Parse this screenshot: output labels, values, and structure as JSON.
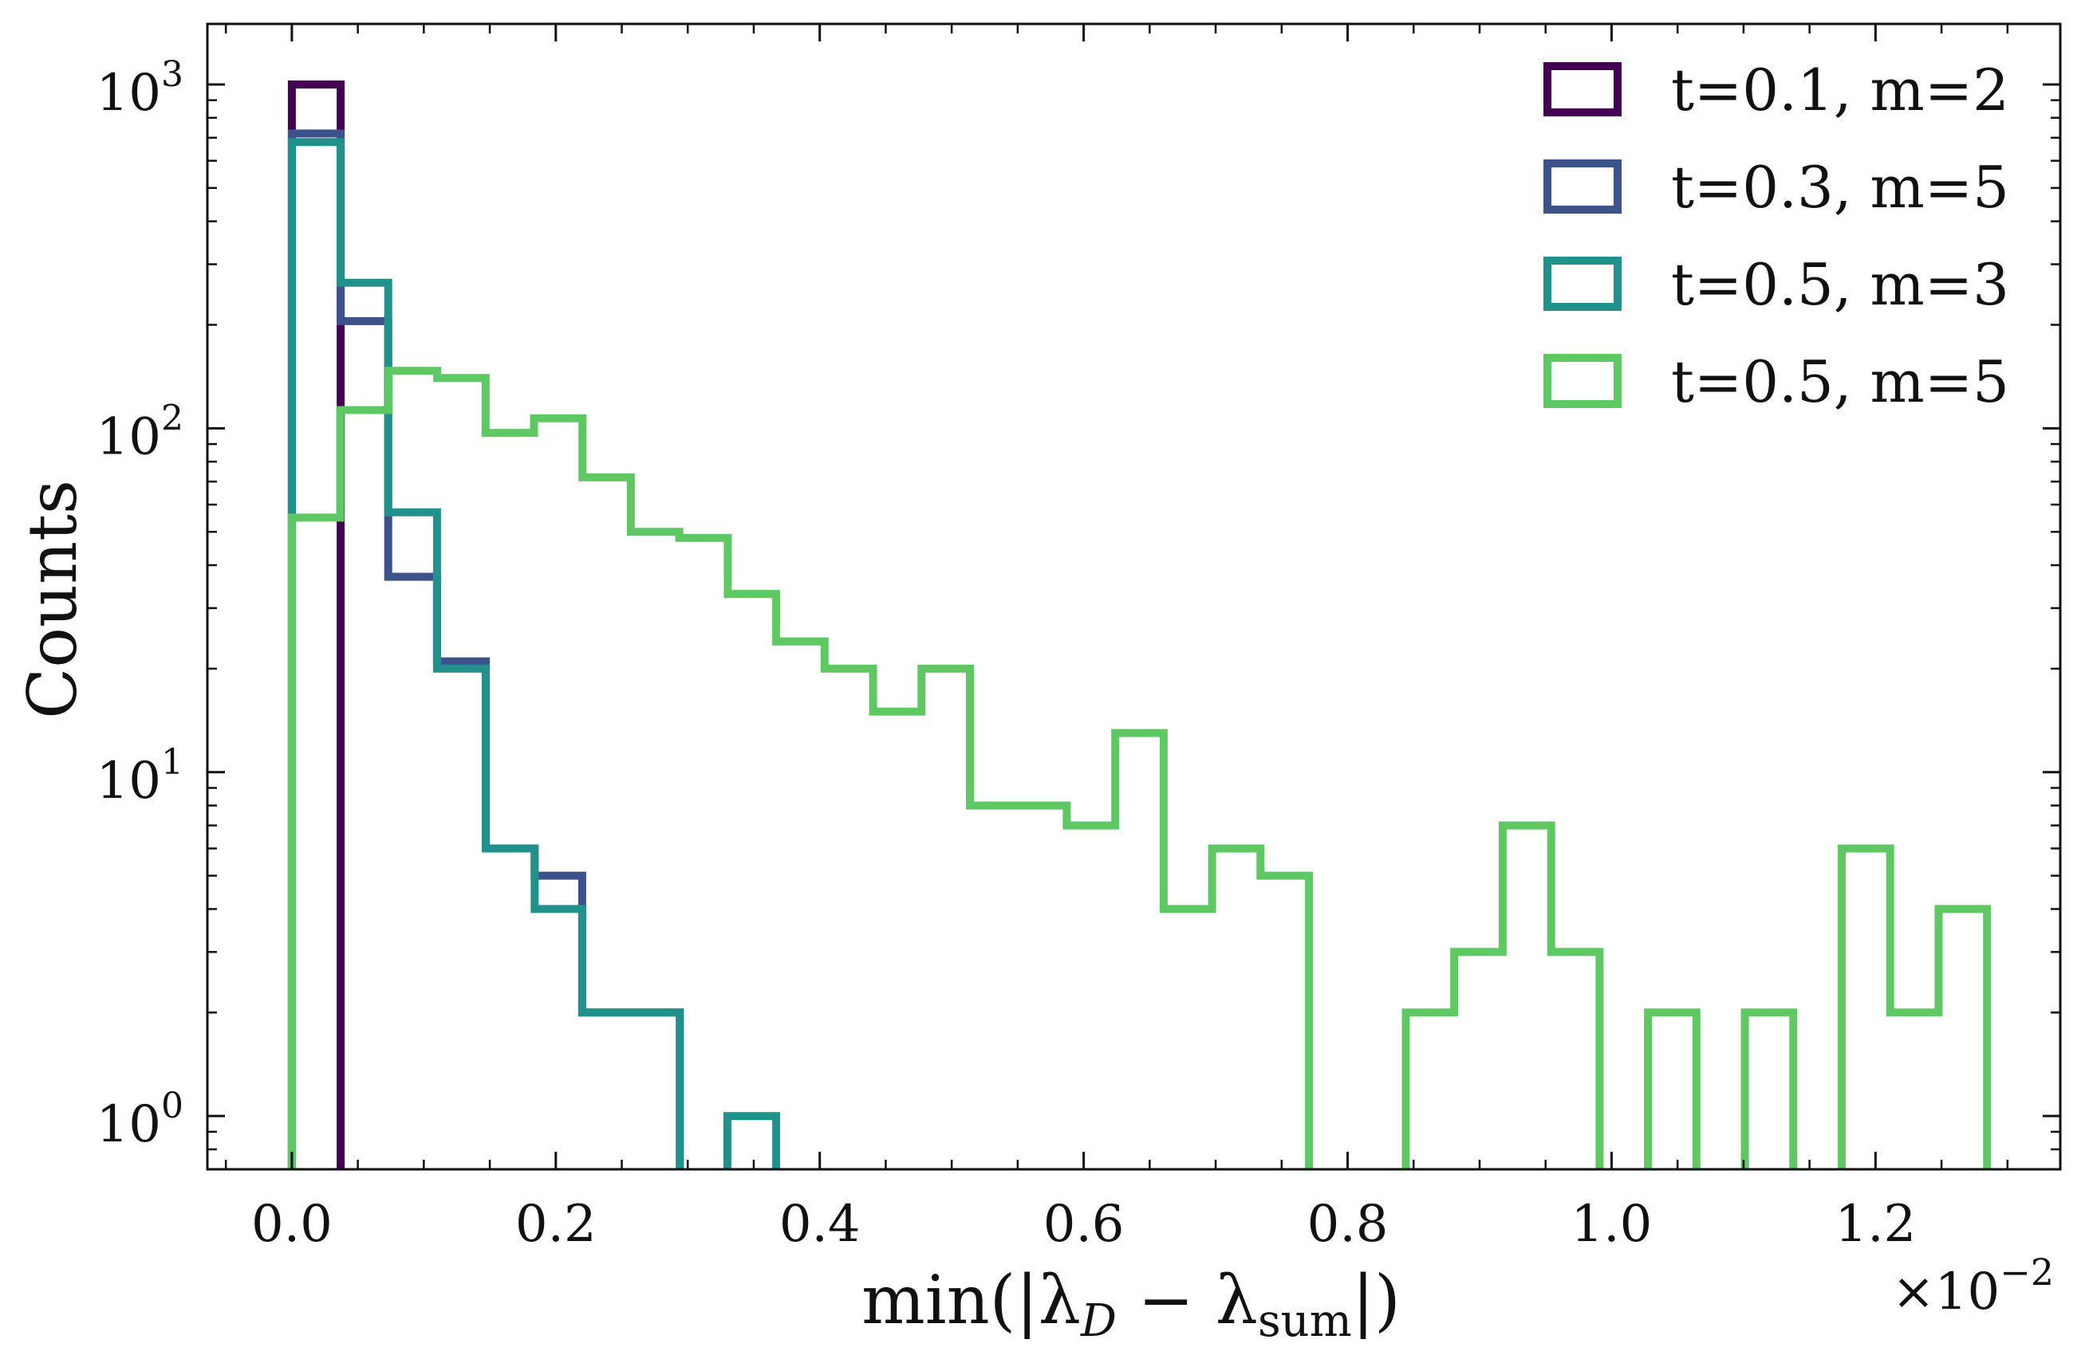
{
  "chart_data": {
    "type": "histogram-step",
    "xlabel": "min(|λ_D − λ_sum|)",
    "xlabel_parts": {
      "prefix": "min(|λ",
      "sub1": "D",
      "mid": " − λ",
      "sub2": "sum",
      "suffix": "|)"
    },
    "ylabel": "Counts",
    "x_multiplier": {
      "base": "×10",
      "exponent": "−2"
    },
    "yscale": "log",
    "xlim": [
      -0.064,
      1.34
    ],
    "ylim": [
      0.7,
      1500
    ],
    "xticks": [
      0.0,
      0.2,
      0.4,
      0.6,
      0.8,
      1.0,
      1.2
    ],
    "xtick_labels": [
      "0.0",
      "0.2",
      "0.4",
      "0.6",
      "0.8",
      "1.0",
      "1.2"
    ],
    "yticks": [
      {
        "value": 1,
        "base": "10",
        "exp": "0"
      },
      {
        "value": 10,
        "base": "10",
        "exp": "1"
      },
      {
        "value": 100,
        "base": "10",
        "exp": "2"
      },
      {
        "value": 1000,
        "base": "10",
        "exp": "3"
      }
    ],
    "legend_position": "top-right",
    "series": [
      {
        "name": "t=0.1, m=2",
        "color": "#440154",
        "edges": [
          0.0,
          0.037
        ],
        "counts": [
          1000
        ]
      },
      {
        "name": "t=0.3, m=5",
        "color": "#3b528b",
        "edges": [
          0.0,
          0.037,
          0.073,
          0.11,
          0.147,
          0.184,
          0.22,
          0.257,
          0.294
        ],
        "counts": [
          720,
          205,
          37,
          21,
          6,
          5,
          2,
          2
        ]
      },
      {
        "name": "t=0.5, m=3",
        "color": "#21918c",
        "edges": [
          0.0,
          0.037,
          0.073,
          0.11,
          0.147,
          0.184,
          0.22,
          0.257,
          0.294,
          0.33,
          0.367
        ],
        "counts": [
          680,
          265,
          57,
          20,
          6,
          4,
          2,
          2,
          0,
          1
        ]
      },
      {
        "name": "t=0.5, m=5",
        "color": "#5ec962",
        "edges": [
          0.0,
          0.0367,
          0.0734,
          0.1101,
          0.1468,
          0.1835,
          0.2202,
          0.2569,
          0.2936,
          0.3303,
          0.367,
          0.4037,
          0.4404,
          0.4771,
          0.5138,
          0.5505,
          0.5872,
          0.6239,
          0.6606,
          0.6973,
          0.734,
          0.7707,
          0.8074,
          0.8441,
          0.8808,
          0.9175,
          0.9542,
          0.9909,
          1.0276,
          1.0643,
          1.101,
          1.1377,
          1.1744,
          1.2111,
          1.2478,
          1.2845
        ],
        "counts": [
          55,
          113,
          147,
          140,
          97,
          107,
          72,
          50,
          48,
          33,
          24,
          20,
          15,
          20,
          8,
          8,
          7,
          13,
          4,
          6,
          5,
          0,
          0,
          2,
          3,
          7,
          3,
          0,
          2,
          0,
          2,
          0,
          6,
          2,
          4
        ]
      }
    ]
  }
}
